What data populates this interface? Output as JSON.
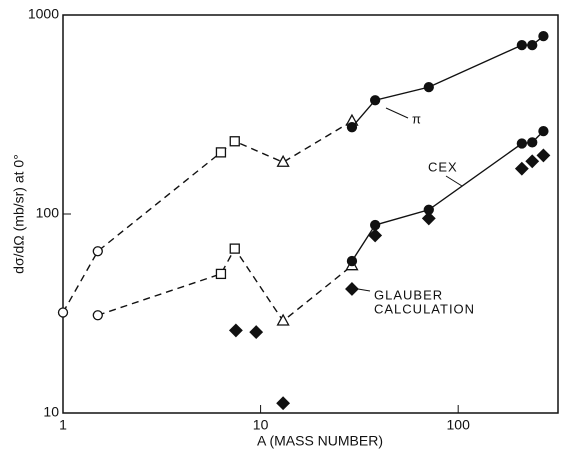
{
  "chart_data": {
    "type": "scatter",
    "xlabel": "A (MASS NUMBER)",
    "ylabel": "dσ/dΩ (mb/sr) at 0°",
    "xlog": true,
    "ylog": true,
    "xlim": [
      1,
      320
    ],
    "ylim": [
      10,
      1000
    ],
    "xticks": [
      1,
      10,
      100
    ],
    "yticks": [
      10,
      100,
      1000
    ],
    "color": "#111111",
    "annotations": [
      "π",
      "CEX",
      "GLAUBER",
      "CALCULATION"
    ],
    "series": [
      {
        "line": "dashed",
        "markers": [
          "circle",
          "circle",
          "square",
          "square",
          "triangle",
          "triangle"
        ],
        "filled": false,
        "x": [
          1,
          1.5,
          6.3,
          7.4,
          13,
          29
        ],
        "values": [
          32,
          65,
          204,
          232,
          182,
          293
        ]
      },
      {
        "line": "solid",
        "markers": [
          "circle",
          "circle",
          "circle",
          "circle",
          "circle",
          "circle"
        ],
        "filled": true,
        "x": [
          29,
          38,
          71,
          210,
          237,
          270
        ],
        "values": [
          273,
          373,
          434,
          706,
          706,
          783
        ]
      },
      {
        "line": "dashed",
        "markers": [
          "circle",
          "square",
          "square",
          "triangle",
          "triangle"
        ],
        "filled": false,
        "x": [
          1.5,
          6.3,
          7.4,
          13,
          29
        ],
        "values": [
          31,
          50,
          67,
          29,
          55
        ]
      },
      {
        "line": "solid",
        "markers": [
          "circle",
          "circle",
          "circle",
          "circle",
          "circle",
          "circle"
        ],
        "filled": true,
        "x": [
          29,
          38,
          71,
          210,
          237,
          270
        ],
        "values": [
          58,
          88,
          105,
          226,
          229,
          261
        ]
      },
      {
        "line": "none",
        "markers": [
          "diamond",
          "diamond",
          "diamond",
          "diamond",
          "diamond",
          "diamond",
          "diamond",
          "diamond",
          "diamond"
        ],
        "filled": true,
        "x": [
          7.5,
          9.5,
          13,
          29,
          38,
          71,
          210,
          237,
          270
        ],
        "values": [
          26,
          25.5,
          11.2,
          42,
          78,
          95,
          169,
          184,
          197
        ]
      }
    ]
  }
}
